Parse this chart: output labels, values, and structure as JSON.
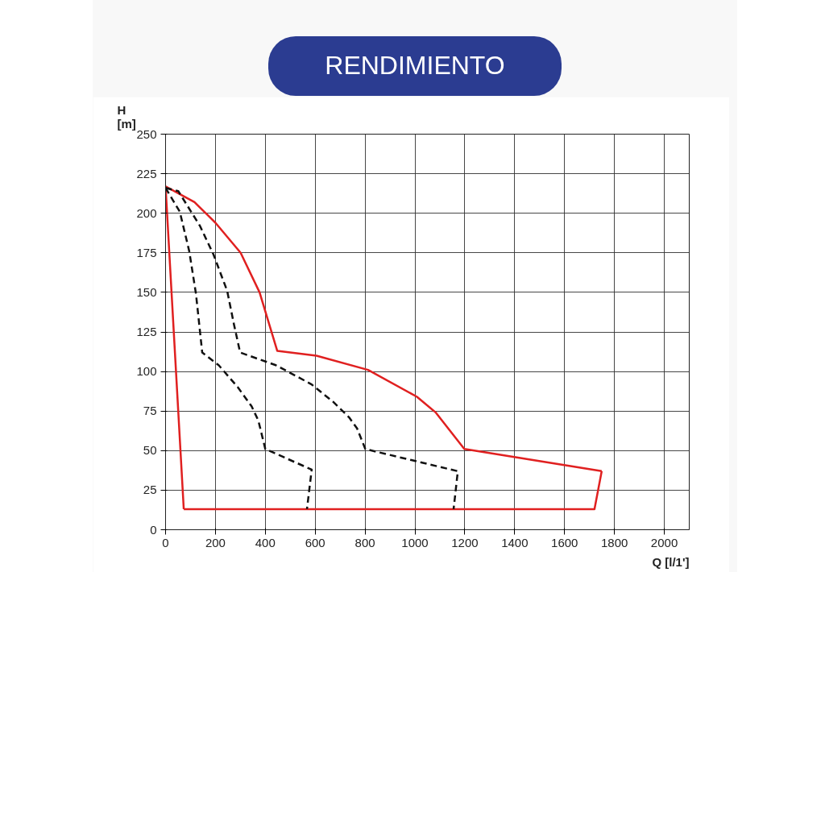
{
  "chart_data": {
    "type": "line",
    "title": "RENDIMIENTO",
    "xlabel": "Q [l/1']",
    "ylabel": "H\n[m]",
    "xlim": [
      0,
      2100
    ],
    "ylim": [
      0,
      250
    ],
    "xticks": [
      0,
      200,
      400,
      600,
      800,
      1000,
      1200,
      1400,
      1600,
      1800,
      2000
    ],
    "yticks": [
      0,
      25,
      50,
      75,
      100,
      125,
      150,
      175,
      200,
      225,
      250
    ],
    "grid": true,
    "marker": "none",
    "series": [
      {
        "color": "#e02020",
        "line_style": "solid",
        "x": [
          73,
          0,
          116,
          200,
          301,
          377,
          448,
          605,
          812,
          1008,
          1084,
          1198,
          1749
        ],
        "values": [
          13,
          217,
          207,
          194,
          175,
          150,
          113,
          110,
          101,
          84,
          74,
          51,
          37
        ]
      },
      {
        "color": "#e02020",
        "line_style": "solid",
        "x": [
          1749,
          1720,
          73
        ],
        "values": [
          37,
          13,
          13
        ]
      },
      {
        "color": "#111111",
        "line_style": "dashed",
        "x": [
          0,
          57,
          95,
          122,
          147,
          213,
          290,
          345,
          372,
          400,
          586,
          567
        ],
        "values": [
          216,
          201,
          176,
          149,
          112,
          104,
          90,
          78,
          69,
          51,
          38,
          13
        ]
      },
      {
        "color": "#111111",
        "line_style": "dashed",
        "x": [
          0,
          51,
          138,
          192,
          247,
          274,
          299,
          442,
          584,
          671,
          736,
          768,
          801,
          986,
          1172,
          1155
        ],
        "values": [
          216,
          214,
          192,
          174,
          151,
          130,
          112,
          104,
          92,
          81,
          71,
          64,
          51,
          44,
          37,
          13
        ]
      }
    ]
  }
}
